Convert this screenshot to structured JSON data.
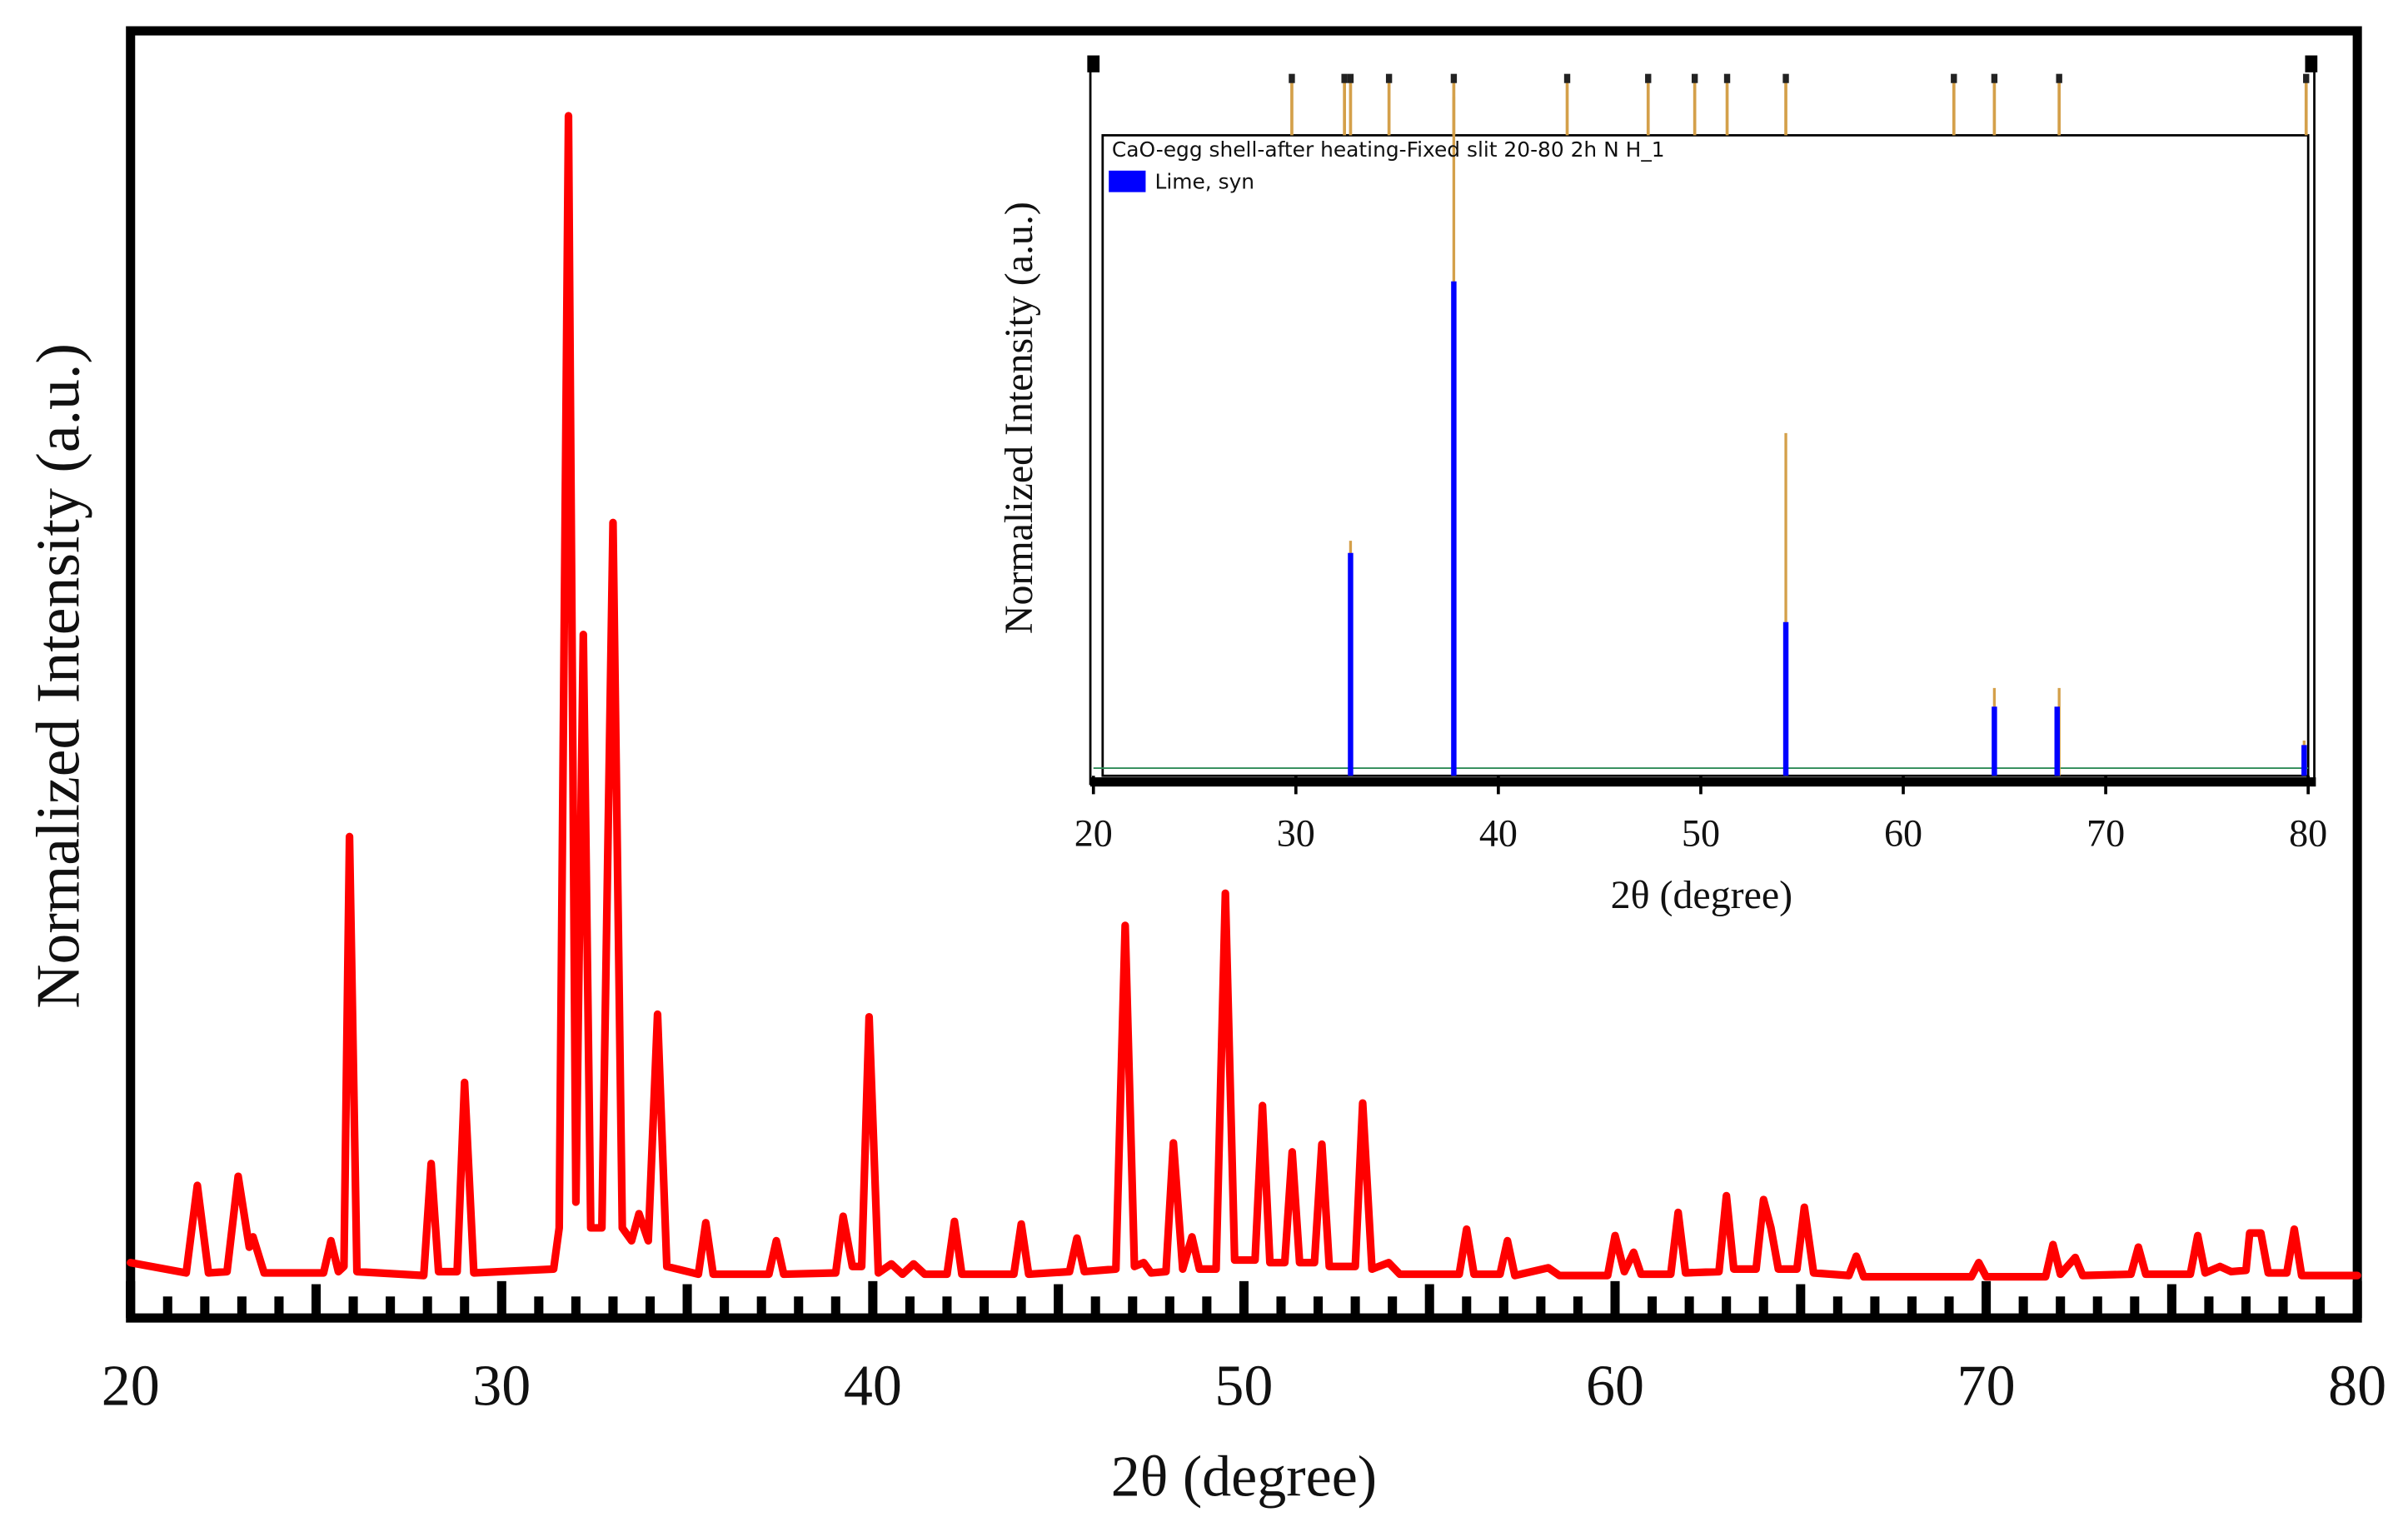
{
  "chart_data": [
    {
      "type": "line",
      "xlabel": "2θ (degree)",
      "ylabel": "Normalized Intensity (a.u.)",
      "xlim": [
        20,
        80
      ],
      "ylim": [
        0,
        100
      ],
      "xticks": [
        20,
        30,
        40,
        50,
        60,
        70,
        80
      ],
      "xminorticks": [
        21,
        22,
        23,
        24,
        25,
        26,
        27,
        28,
        29,
        31,
        32,
        33,
        34,
        35,
        36,
        37,
        38,
        39,
        41,
        42,
        43,
        44,
        45,
        46,
        47,
        48,
        49,
        51,
        52,
        53,
        54,
        55,
        56,
        57,
        58,
        59,
        61,
        62,
        63,
        64,
        65,
        66,
        67,
        68,
        69,
        71,
        72,
        73,
        74,
        75,
        76,
        77,
        78,
        79
      ],
      "x": [
        20,
        21.5,
        21.8,
        22.1,
        22.6,
        22.9,
        23.2,
        23.3,
        23.6,
        25.2,
        25.4,
        25.6,
        25.75,
        25.9,
        26.1,
        27.9,
        28.1,
        28.3,
        28.8,
        29.0,
        29.25,
        31.4,
        31.55,
        31.8,
        32.0,
        32.2,
        32.4,
        32.7,
        33.0,
        33.25,
        33.5,
        33.7,
        33.95,
        34.2,
        34.45,
        35.3,
        35.5,
        35.7,
        37.2,
        37.4,
        37.6,
        39.0,
        39.2,
        39.45,
        39.7,
        39.9,
        40.15,
        40.5,
        40.8,
        41.1,
        41.4,
        42.0,
        42.2,
        42.4,
        43.8,
        44.0,
        44.2,
        45.3,
        45.5,
        45.7,
        46.55,
        46.8,
        47.05,
        47.3,
        47.5,
        47.9,
        48.1,
        48.35,
        48.6,
        48.8,
        49.25,
        49.5,
        49.75,
        50.3,
        50.5,
        50.7,
        51.1,
        51.3,
        51.5,
        51.9,
        52.1,
        52.3,
        53.0,
        53.2,
        53.45,
        53.9,
        54.2,
        55.8,
        56.0,
        56.2,
        56.9,
        57.1,
        57.3,
        58.2,
        58.5,
        59.8,
        60.0,
        60.25,
        60.5,
        60.7,
        61.5,
        61.7,
        61.9,
        62.8,
        63.0,
        63.2,
        63.8,
        64.0,
        64.2,
        64.4,
        64.9,
        65.1,
        65.35,
        66.3,
        66.5,
        66.7,
        69.6,
        69.8,
        70.0,
        71.6,
        71.8,
        72.0,
        72.4,
        72.6,
        73.9,
        74.1,
        74.3,
        75.5,
        75.7,
        75.9,
        76.3,
        76.6,
        77.0,
        77.1,
        77.4,
        77.6,
        78.1,
        78.3,
        78.5,
        80
      ],
      "series": [
        {
          "color": "#ff0000",
          "values": [
            4.3,
            3.5,
            10.3,
            3.5,
            3.6,
            11,
            5.5,
            6.3,
            3.5,
            3.5,
            6,
            3.6,
            4,
            37.4,
            3.6,
            3.3,
            12,
            3.6,
            3.6,
            18.3,
            3.5,
            3.8,
            7,
            93.4,
            9,
            53.1,
            7,
            7,
            61.8,
            7,
            6,
            8.1,
            6,
            23.6,
            4,
            3.4,
            7.4,
            3.4,
            3.4,
            6,
            3.4,
            3.5,
            7.9,
            4,
            4,
            23.4,
            3.5,
            4.2,
            3.4,
            4.2,
            3.4,
            3.4,
            7.5,
            3.4,
            3.4,
            7.3,
            3.4,
            3.6,
            6.2,
            3.6,
            3.8,
            30.5,
            4,
            4.3,
            3.5,
            3.6,
            13.6,
            3.8,
            6.3,
            3.8,
            3.8,
            33,
            4.5,
            4.5,
            16.5,
            4.3,
            4.3,
            12.9,
            4.3,
            4.3,
            13.5,
            4,
            4,
            16.7,
            3.8,
            4.3,
            3.4,
            3.4,
            6.9,
            3.4,
            3.4,
            6,
            3.3,
            3.9,
            3.3,
            3.3,
            6.4,
            3.6,
            5.1,
            3.4,
            3.4,
            8.2,
            3.5,
            3.6,
            9.5,
            3.8,
            3.8,
            9.2,
            7,
            3.8,
            3.8,
            8.6,
            3.5,
            3.3,
            4.8,
            3.2,
            3.2,
            4.3,
            3.2,
            3.2,
            5.7,
            3.4,
            4.7,
            3.3,
            3.4,
            5.5,
            3.4,
            3.4,
            6.4,
            3.5,
            4,
            3.6,
            3.7,
            6.6,
            6.6,
            3.5,
            3.5,
            6.9,
            3.3,
            3.3
          ]
        }
      ]
    },
    {
      "type": "stick",
      "title": "CaO-egg shell-after heating-Fixed slit 20-80 2h N H_1",
      "xlabel": "2θ (degree)",
      "ylabel": "Normalized Intensity (a.u.)",
      "xlim": [
        20,
        80
      ],
      "ylim": [
        0,
        100
      ],
      "xticks": [
        20,
        30,
        40,
        50,
        60,
        70,
        80
      ],
      "markers": [
        29.8,
        32.4,
        32.7,
        34.6,
        37.8,
        43.4,
        47.4,
        49.7,
        51.3,
        54.2,
        62.5,
        64.5,
        67.7,
        79.9
      ],
      "series": [
        {
          "name": "Lime, syn",
          "color": "#0000ff",
          "x": [
            32.7,
            37.8,
            54.2,
            64.5,
            67.6,
            79.8
          ],
          "values": [
            34.8,
            77.2,
            24,
            10.8,
            10.8,
            4.8
          ]
        },
        {
          "color": "#d4a04a",
          "x": [
            32.7,
            37.8,
            54.2,
            64.5,
            67.7,
            79.8
          ],
          "values": [
            36.7,
            106,
            53.5,
            13.7,
            13.7,
            5.5
          ]
        }
      ]
    }
  ]
}
